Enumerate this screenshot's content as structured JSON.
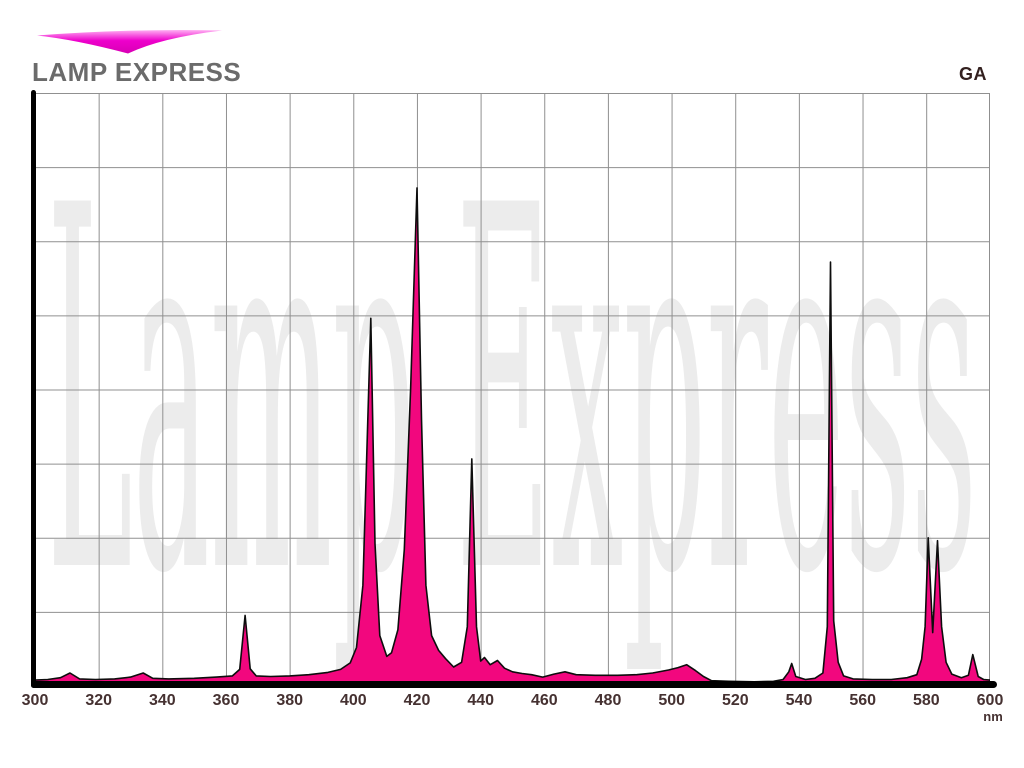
{
  "header": {
    "brand": "LAMP EXPRESS",
    "corner_label": "GA"
  },
  "watermark": "Lamp Express",
  "colors": {
    "spectrum_fill": "#F2077E",
    "spectrum_outline": "#0d0d0d",
    "grid": "#8f8f8f",
    "axis": "#000000",
    "tick_text": "#453131",
    "brand_text": "#6b6b6b",
    "corner_text": "#33201f",
    "watermark_text": "#ececec",
    "logo_magenta_light": "#ffaff2",
    "logo_magenta": "#ee00cc",
    "logo_magenta_deep": "#d800b4"
  },
  "chart_data": {
    "type": "area",
    "title": "",
    "xlabel": "nm",
    "ylabel": "",
    "x_unit_label": "nm",
    "xlim": [
      300,
      600
    ],
    "ylim": [
      0,
      100
    ],
    "x_ticks": [
      "300",
      "320",
      "340",
      "360",
      "380",
      "400",
      "420",
      "440",
      "460",
      "480",
      "500",
      "520",
      "540",
      "560",
      "580",
      "600"
    ],
    "grid": {
      "x_step_nm": 20,
      "y_divisions": 8,
      "visible": true
    },
    "legend_position": "none",
    "peaks_nm": [
      {
        "nm": 311,
        "intensity": 2.2
      },
      {
        "nm": 334,
        "intensity": 2.2
      },
      {
        "nm": 366,
        "intensity": 11.9
      },
      {
        "nm": 405.5,
        "intensity": 62
      },
      {
        "nm": 420,
        "intensity": 84
      },
      {
        "nm": 437.2,
        "intensity": 38.3
      },
      {
        "nm": 504.7,
        "intensity": 3.6
      },
      {
        "nm": 537.7,
        "intensity": 3.8
      },
      {
        "nm": 549.9,
        "intensity": 71.5
      },
      {
        "nm": 580.6,
        "intensity": 25
      },
      {
        "nm": 583.5,
        "intensity": 24.5
      },
      {
        "nm": 594.6,
        "intensity": 5.3
      }
    ],
    "points": [
      [
        300,
        1
      ],
      [
        304,
        1.1
      ],
      [
        308,
        1.4
      ],
      [
        311,
        2.2
      ],
      [
        314,
        1.2
      ],
      [
        319,
        1.1
      ],
      [
        325,
        1.2
      ],
      [
        330,
        1.5
      ],
      [
        334,
        2.2
      ],
      [
        337,
        1.3
      ],
      [
        342,
        1.2
      ],
      [
        350,
        1.3
      ],
      [
        357,
        1.5
      ],
      [
        362,
        1.7
      ],
      [
        364.3,
        2.8
      ],
      [
        366,
        11.9
      ],
      [
        367.6,
        2.9
      ],
      [
        369.5,
        1.7
      ],
      [
        374,
        1.6
      ],
      [
        380,
        1.7
      ],
      [
        386,
        1.9
      ],
      [
        392,
        2.3
      ],
      [
        396,
        2.8
      ],
      [
        399,
        3.9
      ],
      [
        401,
        6.5
      ],
      [
        403,
        17
      ],
      [
        405.5,
        62
      ],
      [
        406.8,
        24
      ],
      [
        408.3,
        8.5
      ],
      [
        410.5,
        5
      ],
      [
        412,
        5.6
      ],
      [
        414,
        9.5
      ],
      [
        416,
        23
      ],
      [
        418,
        50
      ],
      [
        420,
        84
      ],
      [
        421.4,
        45
      ],
      [
        422.8,
        17
      ],
      [
        424.6,
        8.5
      ],
      [
        426.8,
        6
      ],
      [
        429,
        4.6
      ],
      [
        431.5,
        3.2
      ],
      [
        434,
        4
      ],
      [
        435.8,
        10
      ],
      [
        437.2,
        38.3
      ],
      [
        438.7,
        10
      ],
      [
        440,
        4.2
      ],
      [
        441.2,
        4.8
      ],
      [
        443,
        3.6
      ],
      [
        445.3,
        4.3
      ],
      [
        447.5,
        3
      ],
      [
        450,
        2.4
      ],
      [
        453,
        2.1
      ],
      [
        456,
        1.9
      ],
      [
        459.5,
        1.5
      ],
      [
        463,
        2
      ],
      [
        466.5,
        2.4
      ],
      [
        470,
        1.9
      ],
      [
        476,
        1.8
      ],
      [
        483,
        1.8
      ],
      [
        489,
        1.9
      ],
      [
        494,
        2.2
      ],
      [
        499,
        2.7
      ],
      [
        502,
        3.1
      ],
      [
        504.7,
        3.6
      ],
      [
        507.5,
        2.6
      ],
      [
        510,
        1.6
      ],
      [
        512.5,
        0.9
      ],
      [
        518,
        0.8
      ],
      [
        526,
        0.7
      ],
      [
        532,
        0.8
      ],
      [
        535,
        1.1
      ],
      [
        536.8,
        2.4
      ],
      [
        537.7,
        3.8
      ],
      [
        539,
        1.6
      ],
      [
        542,
        1.1
      ],
      [
        545,
        1.3
      ],
      [
        547.5,
        2.2
      ],
      [
        548.9,
        10
      ],
      [
        549.9,
        71.5
      ],
      [
        550.9,
        11
      ],
      [
        552.3,
        4
      ],
      [
        554,
        1.7
      ],
      [
        557,
        1.2
      ],
      [
        563,
        1.1
      ],
      [
        569,
        1.1
      ],
      [
        574,
        1.4
      ],
      [
        577,
        1.9
      ],
      [
        578.5,
        4.5
      ],
      [
        579.6,
        10
      ],
      [
        580.6,
        25
      ],
      [
        582,
        9
      ],
      [
        583.5,
        24.5
      ],
      [
        584.8,
        10
      ],
      [
        586.2,
        4
      ],
      [
        588,
        2
      ],
      [
        591,
        1.4
      ],
      [
        593.2,
        1.8
      ],
      [
        594.6,
        5.3
      ],
      [
        596.3,
        1.6
      ],
      [
        598,
        1.1
      ],
      [
        600,
        1
      ]
    ]
  }
}
